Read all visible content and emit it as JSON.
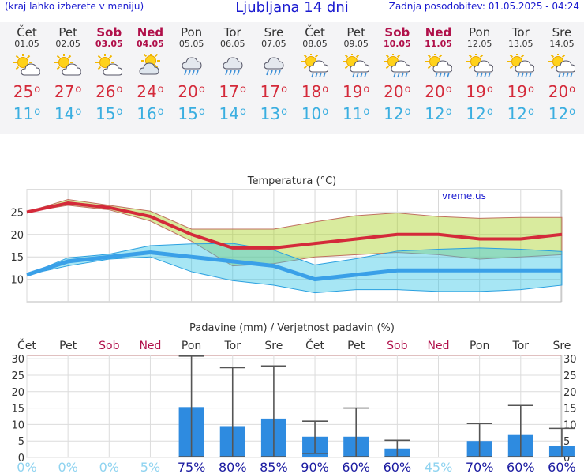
{
  "header": {
    "left_note": "(kraj lahko izberete v meniju)",
    "title": "Ljubljana 14 dni",
    "updated": "Zadnja posodobitev: 01.05.2025 - 04:24"
  },
  "days": [
    {
      "name": "Čet",
      "date": "01.05",
      "weekend": false,
      "icon": "sun-partly-cloudy-icon",
      "tmax": "25",
      "tmin": "11"
    },
    {
      "name": "Pet",
      "date": "02.05",
      "weekend": false,
      "icon": "sun-partly-cloudy-icon",
      "tmax": "27",
      "tmin": "14"
    },
    {
      "name": "Sob",
      "date": "03.05",
      "weekend": true,
      "icon": "sun-partly-cloudy-icon",
      "tmax": "26",
      "tmin": "15"
    },
    {
      "name": "Ned",
      "date": "04.05",
      "weekend": true,
      "icon": "cloud-sun-icon",
      "tmax": "24",
      "tmin": "16"
    },
    {
      "name": "Pon",
      "date": "05.05",
      "weekend": false,
      "icon": "cloud-rain-icon",
      "tmax": "20",
      "tmin": "15"
    },
    {
      "name": "Tor",
      "date": "06.05",
      "weekend": false,
      "icon": "cloud-rain-icon",
      "tmax": "17",
      "tmin": "14"
    },
    {
      "name": "Sre",
      "date": "07.05",
      "weekend": false,
      "icon": "cloud-rain-icon",
      "tmax": "17",
      "tmin": "13"
    },
    {
      "name": "Čet",
      "date": "08.05",
      "weekend": false,
      "icon": "sun-cloud-rain-icon",
      "tmax": "18",
      "tmin": "10"
    },
    {
      "name": "Pet",
      "date": "09.05",
      "weekend": false,
      "icon": "sun-cloud-rain-icon",
      "tmax": "19",
      "tmin": "11"
    },
    {
      "name": "Sob",
      "date": "10.05",
      "weekend": true,
      "icon": "sun-cloud-rain-icon",
      "tmax": "20",
      "tmin": "12"
    },
    {
      "name": "Ned",
      "date": "11.05",
      "weekend": true,
      "icon": "sun-cloud-rain-icon",
      "tmax": "20",
      "tmin": "12"
    },
    {
      "name": "Pon",
      "date": "12.05",
      "weekend": false,
      "icon": "sun-cloud-rain-icon",
      "tmax": "19",
      "tmin": "12"
    },
    {
      "name": "Tor",
      "date": "13.05",
      "weekend": false,
      "icon": "sun-cloud-rain-icon",
      "tmax": "19",
      "tmin": "12"
    },
    {
      "name": "Sre",
      "date": "14.05",
      "weekend": false,
      "icon": "sun-cloud-rain-icon",
      "tmax": "20",
      "tmin": "12"
    }
  ],
  "degree_symbol": "o",
  "colors": {
    "tmax": "#d42a3a",
    "tmin": "#3aaee0",
    "weekend": "#b0104a",
    "bar": "#2e8be0",
    "prob_low": "#8fd3f0",
    "prob_high": "#1a1aa0"
  },
  "chart_data": [
    {
      "type": "line",
      "title": "Temperatura (°C)",
      "watermark": "vreme.us",
      "x": [
        "01.05",
        "02.05",
        "03.05",
        "04.05",
        "05.05",
        "06.05",
        "07.05",
        "08.05",
        "09.05",
        "10.05",
        "11.05",
        "12.05",
        "13.05",
        "14.05"
      ],
      "ylim": [
        5,
        30
      ],
      "yticks": [
        10,
        15,
        20,
        25
      ],
      "series": [
        {
          "values": [
            25,
            27,
            26,
            24,
            20,
            17,
            17,
            18,
            19,
            20,
            20,
            19,
            19,
            20
          ],
          "band_low": [
            25,
            26.5,
            25.5,
            23,
            18.5,
            13,
            13.5,
            15,
            15.5,
            16,
            15.5,
            14.5,
            15,
            15.5
          ],
          "band_high": [
            25,
            27.8,
            26.5,
            25.2,
            21.2,
            21.2,
            21.2,
            22.8,
            24.2,
            24.8,
            24,
            23.6,
            23.8,
            23.8
          ]
        },
        {
          "values": [
            11,
            14,
            15,
            16,
            15,
            14,
            13,
            10,
            11,
            12,
            12,
            12,
            12,
            12
          ],
          "band_low": [
            11,
            13,
            14.5,
            15,
            11.7,
            9.7,
            8.7,
            7,
            7.7,
            7.7,
            7.3,
            7.3,
            7.7,
            8.7
          ],
          "band_high": [
            11,
            14.8,
            15.6,
            17.5,
            17.9,
            18,
            16.5,
            13.2,
            14.6,
            16.3,
            16.7,
            17,
            16.7,
            16.2
          ]
        }
      ],
      "grid": true
    },
    {
      "type": "bar",
      "title": "Padavine (mm) / Verjetnost padavin (%)",
      "categories": [
        "Čet",
        "Pet",
        "Sob",
        "Ned",
        "Pon",
        "Tor",
        "Sre",
        "Čet",
        "Pet",
        "Sob",
        "Ned",
        "Pon",
        "Tor",
        "Sre"
      ],
      "weekend": [
        false,
        false,
        true,
        true,
        false,
        false,
        false,
        false,
        false,
        true,
        true,
        false,
        false,
        false
      ],
      "values": [
        0,
        0,
        0,
        0,
        15.3,
        9.5,
        11.8,
        6.3,
        6.3,
        2.7,
        0,
        5,
        6.8,
        3.5
      ],
      "err_low": [
        0,
        0,
        0,
        0,
        0,
        0,
        0,
        1,
        0,
        0,
        0,
        0,
        0,
        0
      ],
      "err_high": [
        0,
        0,
        0,
        0,
        30.8,
        27.3,
        27.8,
        11,
        15,
        5.2,
        0,
        10.3,
        15.8,
        8.8
      ],
      "probability": [
        "0%",
        "0%",
        "0%",
        "5%",
        "75%",
        "80%",
        "85%",
        "90%",
        "60%",
        "60%",
        "45%",
        "70%",
        "60%",
        "60%"
      ],
      "ylim": [
        0,
        31
      ],
      "yticks": [
        0,
        5,
        10,
        15,
        20,
        25,
        30
      ],
      "grid": true
    }
  ]
}
